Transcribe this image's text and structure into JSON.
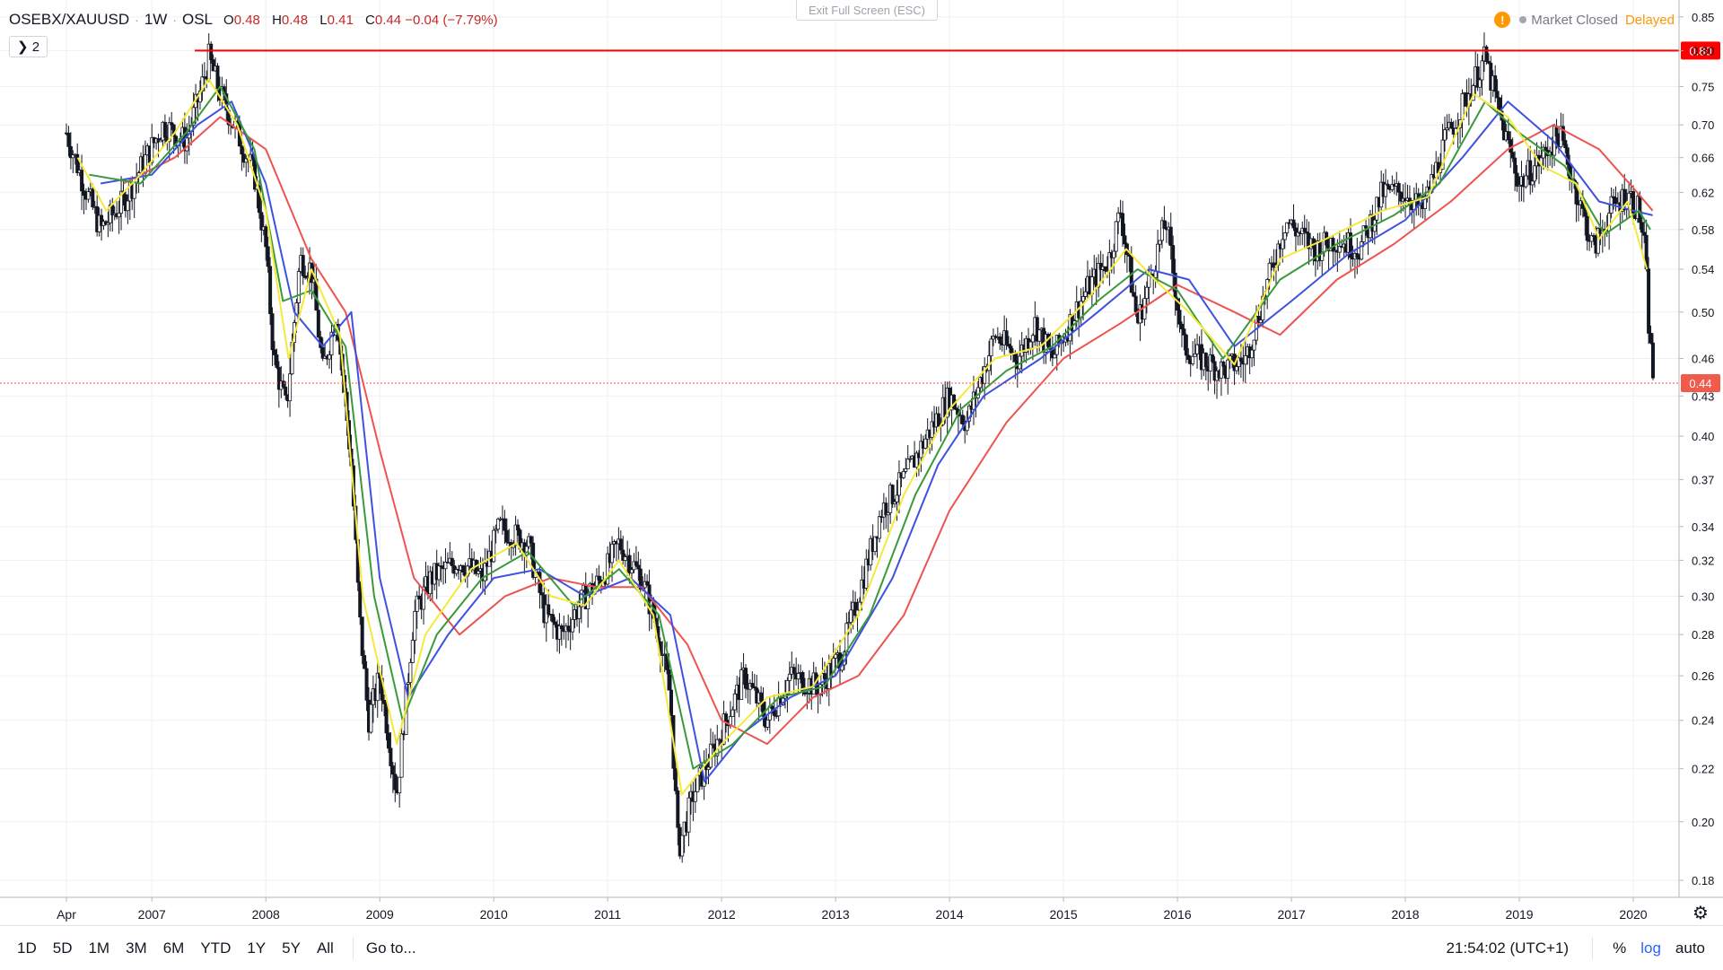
{
  "header": {
    "symbol": "OSEBX/XAUUSD",
    "interval": "1W",
    "exchange": "OSL",
    "ohlc": [
      {
        "label": "O",
        "value": "0.48"
      },
      {
        "label": "H",
        "value": "0.48"
      },
      {
        "label": "L",
        "value": "0.41"
      },
      {
        "label": "C",
        "value": "0.44 −0.04 (−7.79%)"
      }
    ]
  },
  "legend_toggle": "❯ 2",
  "exit_fullscreen": "Exit Full Screen (ESC)",
  "status": {
    "warn_glyph": "!",
    "market": "Market Closed",
    "delayed": "Delayed"
  },
  "bottom": {
    "ranges": [
      "1D",
      "5D",
      "1M",
      "3M",
      "6M",
      "YTD",
      "1Y",
      "5Y",
      "All"
    ],
    "goto": "Go to...",
    "clock": "21:54:02 (UTC+1)",
    "percent": "%",
    "log": "log",
    "auto": "auto",
    "settings_icon": "gear-icon"
  },
  "colors": {
    "up": "#26a69a",
    "bar": "#131722",
    "ma_red": "#ef5350",
    "ma_blue": "#3f51e0",
    "ma_green": "#3a9a3a",
    "ma_yellow": "#f5e93c",
    "hline": "#ff0000",
    "price_label": "#f15b4c"
  },
  "chart_data": {
    "type": "line",
    "title": "OSEBX/XAUUSD · 1W · OSL",
    "scale": "log",
    "ylim": [
      0.176,
      0.865
    ],
    "xlim": [
      2006.15,
      2020.35
    ],
    "yticks": [
      0.18,
      0.2,
      0.22,
      0.24,
      0.26,
      0.28,
      0.3,
      0.32,
      0.34,
      0.37,
      0.4,
      0.43,
      0.46,
      0.5,
      0.54,
      0.58,
      0.62,
      0.66,
      0.7,
      0.75,
      0.8,
      0.85
    ],
    "ytick_labels": [
      "0.18",
      "0.20",
      "0.22",
      "0.24",
      "0.26",
      "0.28",
      "0.30",
      "0.32",
      "0.34",
      "0.37",
      "0.40",
      "0.43",
      "0.46",
      "0.50",
      "0.54",
      "0.58",
      "0.62",
      "0.66",
      "0.70",
      "0.75",
      "0.80",
      "0.85"
    ],
    "xticks": [
      2006.25,
      2007,
      2008,
      2009,
      2010,
      2011,
      2012,
      2013,
      2014,
      2015,
      2016,
      2017,
      2018,
      2019,
      2020
    ],
    "xtick_labels": [
      "Apr",
      "2007",
      "2008",
      "2009",
      "2010",
      "2011",
      "2012",
      "2013",
      "2014",
      "2015",
      "2016",
      "2017",
      "2018",
      "2019",
      "2020"
    ],
    "grid": true,
    "horizontal_line": {
      "value": 0.8,
      "label": "0.80"
    },
    "last_price": {
      "value": 0.44,
      "label": "0.44"
    },
    "price_series": [
      [
        2006.25,
        0.69
      ],
      [
        2006.4,
        0.63
      ],
      [
        2006.55,
        0.58
      ],
      [
        2006.75,
        0.61
      ],
      [
        2006.95,
        0.66
      ],
      [
        2007.1,
        0.7
      ],
      [
        2007.3,
        0.68
      ],
      [
        2007.42,
        0.74
      ],
      [
        2007.5,
        0.79
      ],
      [
        2007.6,
        0.74
      ],
      [
        2007.75,
        0.69
      ],
      [
        2007.9,
        0.64
      ],
      [
        2008.0,
        0.56
      ],
      [
        2008.07,
        0.46
      ],
      [
        2008.18,
        0.42
      ],
      [
        2008.3,
        0.55
      ],
      [
        2008.4,
        0.54
      ],
      [
        2008.5,
        0.45
      ],
      [
        2008.62,
        0.5
      ],
      [
        2008.75,
        0.38
      ],
      [
        2008.82,
        0.29
      ],
      [
        2008.9,
        0.24
      ],
      [
        2009.0,
        0.26
      ],
      [
        2009.15,
        0.21
      ],
      [
        2009.3,
        0.29
      ],
      [
        2009.45,
        0.31
      ],
      [
        2009.7,
        0.32
      ],
      [
        2009.9,
        0.31
      ],
      [
        2010.05,
        0.34
      ],
      [
        2010.3,
        0.33
      ],
      [
        2010.45,
        0.29
      ],
      [
        2010.6,
        0.28
      ],
      [
        2010.8,
        0.3
      ],
      [
        2010.95,
        0.31
      ],
      [
        2011.1,
        0.33
      ],
      [
        2011.3,
        0.31
      ],
      [
        2011.45,
        0.28
      ],
      [
        2011.55,
        0.25
      ],
      [
        2011.62,
        0.19
      ],
      [
        2011.75,
        0.21
      ],
      [
        2011.95,
        0.23
      ],
      [
        2012.2,
        0.26
      ],
      [
        2012.4,
        0.24
      ],
      [
        2012.6,
        0.26
      ],
      [
        2012.85,
        0.255
      ],
      [
        2013.05,
        0.27
      ],
      [
        2013.2,
        0.3
      ],
      [
        2013.4,
        0.35
      ],
      [
        2013.6,
        0.37
      ],
      [
        2013.8,
        0.4
      ],
      [
        2014.0,
        0.43
      ],
      [
        2014.15,
        0.41
      ],
      [
        2014.4,
        0.48
      ],
      [
        2014.6,
        0.46
      ],
      [
        2014.75,
        0.49
      ],
      [
        2014.9,
        0.46
      ],
      [
        2015.2,
        0.52
      ],
      [
        2015.4,
        0.55
      ],
      [
        2015.5,
        0.6
      ],
      [
        2015.65,
        0.49
      ],
      [
        2015.9,
        0.59
      ],
      [
        2016.05,
        0.47
      ],
      [
        2016.2,
        0.46
      ],
      [
        2016.4,
        0.45
      ],
      [
        2016.6,
        0.46
      ],
      [
        2016.8,
        0.53
      ],
      [
        2016.95,
        0.59
      ],
      [
        2017.2,
        0.56
      ],
      [
        2017.4,
        0.57
      ],
      [
        2017.6,
        0.56
      ],
      [
        2017.8,
        0.62
      ],
      [
        2018.0,
        0.62
      ],
      [
        2018.15,
        0.6
      ],
      [
        2018.35,
        0.68
      ],
      [
        2018.55,
        0.74
      ],
      [
        2018.7,
        0.79
      ],
      [
        2018.85,
        0.7
      ],
      [
        2019.0,
        0.63
      ],
      [
        2019.2,
        0.66
      ],
      [
        2019.35,
        0.69
      ],
      [
        2019.55,
        0.6
      ],
      [
        2019.65,
        0.56
      ],
      [
        2019.8,
        0.6
      ],
      [
        2019.95,
        0.62
      ],
      [
        2020.05,
        0.6
      ],
      [
        2020.1,
        0.56
      ],
      [
        2020.14,
        0.48
      ],
      [
        2020.18,
        0.44
      ]
    ],
    "ma_fast_yellow": [
      [
        2006.35,
        0.66
      ],
      [
        2006.6,
        0.6
      ],
      [
        2006.9,
        0.64
      ],
      [
        2007.2,
        0.69
      ],
      [
        2007.5,
        0.76
      ],
      [
        2007.75,
        0.7
      ],
      [
        2008.0,
        0.6
      ],
      [
        2008.2,
        0.46
      ],
      [
        2008.4,
        0.54
      ],
      [
        2008.65,
        0.48
      ],
      [
        2008.85,
        0.3
      ],
      [
        2009.15,
        0.23
      ],
      [
        2009.4,
        0.28
      ],
      [
        2009.8,
        0.315
      ],
      [
        2010.2,
        0.33
      ],
      [
        2010.5,
        0.3
      ],
      [
        2010.8,
        0.295
      ],
      [
        2011.1,
        0.32
      ],
      [
        2011.4,
        0.29
      ],
      [
        2011.65,
        0.21
      ],
      [
        2012.0,
        0.23
      ],
      [
        2012.4,
        0.25
      ],
      [
        2012.8,
        0.255
      ],
      [
        2013.2,
        0.29
      ],
      [
        2013.6,
        0.36
      ],
      [
        2014.0,
        0.42
      ],
      [
        2014.4,
        0.46
      ],
      [
        2014.8,
        0.47
      ],
      [
        2015.2,
        0.51
      ],
      [
        2015.55,
        0.56
      ],
      [
        2015.8,
        0.53
      ],
      [
        2016.1,
        0.5
      ],
      [
        2016.5,
        0.455
      ],
      [
        2016.9,
        0.55
      ],
      [
        2017.3,
        0.57
      ],
      [
        2017.8,
        0.6
      ],
      [
        2018.2,
        0.615
      ],
      [
        2018.6,
        0.74
      ],
      [
        2018.9,
        0.71
      ],
      [
        2019.2,
        0.65
      ],
      [
        2019.5,
        0.63
      ],
      [
        2019.7,
        0.57
      ],
      [
        2019.95,
        0.61
      ],
      [
        2020.12,
        0.54
      ]
    ],
    "ma_green": [
      [
        2006.45,
        0.64
      ],
      [
        2006.9,
        0.63
      ],
      [
        2007.3,
        0.69
      ],
      [
        2007.6,
        0.75
      ],
      [
        2007.9,
        0.67
      ],
      [
        2008.15,
        0.51
      ],
      [
        2008.4,
        0.52
      ],
      [
        2008.7,
        0.47
      ],
      [
        2008.95,
        0.3
      ],
      [
        2009.2,
        0.24
      ],
      [
        2009.5,
        0.28
      ],
      [
        2009.9,
        0.31
      ],
      [
        2010.3,
        0.325
      ],
      [
        2010.7,
        0.295
      ],
      [
        2011.1,
        0.315
      ],
      [
        2011.45,
        0.29
      ],
      [
        2011.75,
        0.22
      ],
      [
        2012.1,
        0.23
      ],
      [
        2012.5,
        0.25
      ],
      [
        2012.9,
        0.255
      ],
      [
        2013.3,
        0.29
      ],
      [
        2013.7,
        0.36
      ],
      [
        2014.1,
        0.42
      ],
      [
        2014.5,
        0.45
      ],
      [
        2014.9,
        0.47
      ],
      [
        2015.3,
        0.51
      ],
      [
        2015.65,
        0.54
      ],
      [
        2016.0,
        0.52
      ],
      [
        2016.4,
        0.46
      ],
      [
        2016.9,
        0.53
      ],
      [
        2017.4,
        0.565
      ],
      [
        2017.9,
        0.595
      ],
      [
        2018.3,
        0.63
      ],
      [
        2018.7,
        0.73
      ],
      [
        2019.0,
        0.69
      ],
      [
        2019.4,
        0.65
      ],
      [
        2019.75,
        0.575
      ],
      [
        2020.05,
        0.6
      ],
      [
        2020.15,
        0.58
      ]
    ],
    "ma_blue": [
      [
        2006.55,
        0.63
      ],
      [
        2007.0,
        0.64
      ],
      [
        2007.4,
        0.7
      ],
      [
        2007.7,
        0.73
      ],
      [
        2008.0,
        0.63
      ],
      [
        2008.25,
        0.5
      ],
      [
        2008.5,
        0.47
      ],
      [
        2008.75,
        0.5
      ],
      [
        2009.0,
        0.31
      ],
      [
        2009.25,
        0.25
      ],
      [
        2009.6,
        0.28
      ],
      [
        2010.0,
        0.31
      ],
      [
        2010.4,
        0.315
      ],
      [
        2010.8,
        0.3
      ],
      [
        2011.2,
        0.31
      ],
      [
        2011.55,
        0.29
      ],
      [
        2011.85,
        0.215
      ],
      [
        2012.2,
        0.235
      ],
      [
        2012.6,
        0.25
      ],
      [
        2013.0,
        0.26
      ],
      [
        2013.5,
        0.31
      ],
      [
        2013.9,
        0.38
      ],
      [
        2014.3,
        0.43
      ],
      [
        2014.8,
        0.46
      ],
      [
        2015.3,
        0.5
      ],
      [
        2015.75,
        0.54
      ],
      [
        2016.1,
        0.53
      ],
      [
        2016.5,
        0.47
      ],
      [
        2017.0,
        0.51
      ],
      [
        2017.5,
        0.555
      ],
      [
        2018.0,
        0.59
      ],
      [
        2018.5,
        0.66
      ],
      [
        2018.9,
        0.73
      ],
      [
        2019.3,
        0.68
      ],
      [
        2019.7,
        0.61
      ],
      [
        2020.0,
        0.6
      ],
      [
        2020.17,
        0.595
      ]
    ],
    "ma_red": [
      [
        2006.75,
        0.63
      ],
      [
        2007.2,
        0.66
      ],
      [
        2007.6,
        0.71
      ],
      [
        2008.0,
        0.67
      ],
      [
        2008.4,
        0.55
      ],
      [
        2008.7,
        0.5
      ],
      [
        2009.0,
        0.39
      ],
      [
        2009.3,
        0.31
      ],
      [
        2009.7,
        0.28
      ],
      [
        2010.1,
        0.3
      ],
      [
        2010.5,
        0.31
      ],
      [
        2010.9,
        0.305
      ],
      [
        2011.3,
        0.305
      ],
      [
        2011.7,
        0.275
      ],
      [
        2012.0,
        0.24
      ],
      [
        2012.4,
        0.23
      ],
      [
        2012.8,
        0.25
      ],
      [
        2013.2,
        0.26
      ],
      [
        2013.6,
        0.29
      ],
      [
        2014.0,
        0.35
      ],
      [
        2014.5,
        0.41
      ],
      [
        2015.0,
        0.46
      ],
      [
        2015.5,
        0.49
      ],
      [
        2016.0,
        0.525
      ],
      [
        2016.5,
        0.5
      ],
      [
        2016.9,
        0.48
      ],
      [
        2017.4,
        0.53
      ],
      [
        2017.9,
        0.565
      ],
      [
        2018.4,
        0.61
      ],
      [
        2018.9,
        0.67
      ],
      [
        2019.3,
        0.7
      ],
      [
        2019.7,
        0.67
      ],
      [
        2020.0,
        0.625
      ],
      [
        2020.17,
        0.6
      ]
    ]
  }
}
